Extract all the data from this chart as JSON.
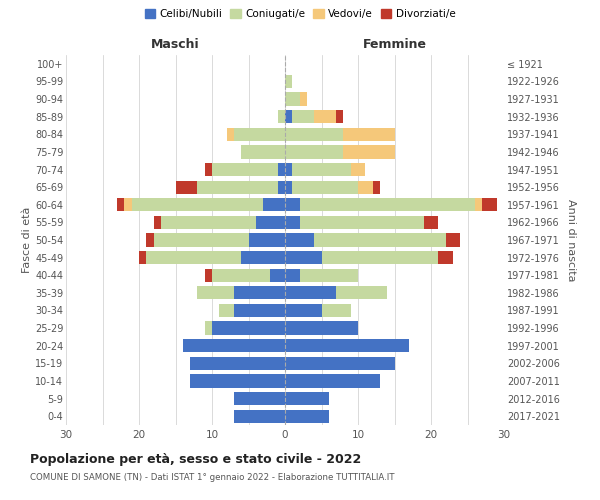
{
  "age_groups": [
    "0-4",
    "5-9",
    "10-14",
    "15-19",
    "20-24",
    "25-29",
    "30-34",
    "35-39",
    "40-44",
    "45-49",
    "50-54",
    "55-59",
    "60-64",
    "65-69",
    "70-74",
    "75-79",
    "80-84",
    "85-89",
    "90-94",
    "95-99",
    "100+"
  ],
  "birth_years": [
    "2017-2021",
    "2012-2016",
    "2007-2011",
    "2002-2006",
    "1997-2001",
    "1992-1996",
    "1987-1991",
    "1982-1986",
    "1977-1981",
    "1972-1976",
    "1967-1971",
    "1962-1966",
    "1957-1961",
    "1952-1956",
    "1947-1951",
    "1942-1946",
    "1937-1941",
    "1932-1936",
    "1927-1931",
    "1922-1926",
    "≤ 1921"
  ],
  "males": {
    "celibe": [
      7,
      7,
      13,
      13,
      14,
      10,
      7,
      7,
      2,
      6,
      5,
      4,
      3,
      1,
      1,
      0,
      0,
      0,
      0,
      0,
      0
    ],
    "coniugato": [
      0,
      0,
      0,
      0,
      0,
      1,
      2,
      5,
      8,
      13,
      13,
      13,
      18,
      11,
      9,
      6,
      7,
      1,
      0,
      0,
      0
    ],
    "vedovo": [
      0,
      0,
      0,
      0,
      0,
      0,
      0,
      0,
      0,
      0,
      0,
      0,
      1,
      0,
      0,
      0,
      1,
      0,
      0,
      0,
      0
    ],
    "divorziato": [
      0,
      0,
      0,
      0,
      0,
      0,
      0,
      0,
      1,
      1,
      1,
      1,
      1,
      3,
      1,
      0,
      0,
      0,
      0,
      0,
      0
    ]
  },
  "females": {
    "nubile": [
      6,
      6,
      13,
      15,
      17,
      10,
      5,
      7,
      2,
      5,
      4,
      2,
      2,
      1,
      1,
      0,
      0,
      1,
      0,
      0,
      0
    ],
    "coniugata": [
      0,
      0,
      0,
      0,
      0,
      0,
      4,
      7,
      8,
      16,
      18,
      17,
      24,
      9,
      8,
      8,
      8,
      3,
      2,
      1,
      0
    ],
    "vedova": [
      0,
      0,
      0,
      0,
      0,
      0,
      0,
      0,
      0,
      0,
      0,
      0,
      1,
      2,
      2,
      7,
      7,
      3,
      1,
      0,
      0
    ],
    "divorziata": [
      0,
      0,
      0,
      0,
      0,
      0,
      0,
      0,
      0,
      2,
      2,
      2,
      2,
      1,
      0,
      0,
      0,
      1,
      0,
      0,
      0
    ]
  },
  "colors": {
    "celibe": "#4472C4",
    "coniugato": "#C5D9A0",
    "vedovo": "#F5C87A",
    "divorziato": "#C0392B"
  },
  "xlim": 30,
  "title": "Popolazione per età, sesso e stato civile - 2022",
  "subtitle": "COMUNE DI SAMONE (TN) - Dati ISTAT 1° gennaio 2022 - Elaborazione TUTTITALIA.IT",
  "ylabel_left": "Fasce di età",
  "ylabel_right": "Anni di nascita",
  "xlabel_left": "Maschi",
  "xlabel_right": "Femmine",
  "legend_labels": [
    "Celibi/Nubili",
    "Coniugati/e",
    "Vedovi/e",
    "Divorziati/e"
  ],
  "bg_color": "#ffffff",
  "grid_color": "#cccccc"
}
